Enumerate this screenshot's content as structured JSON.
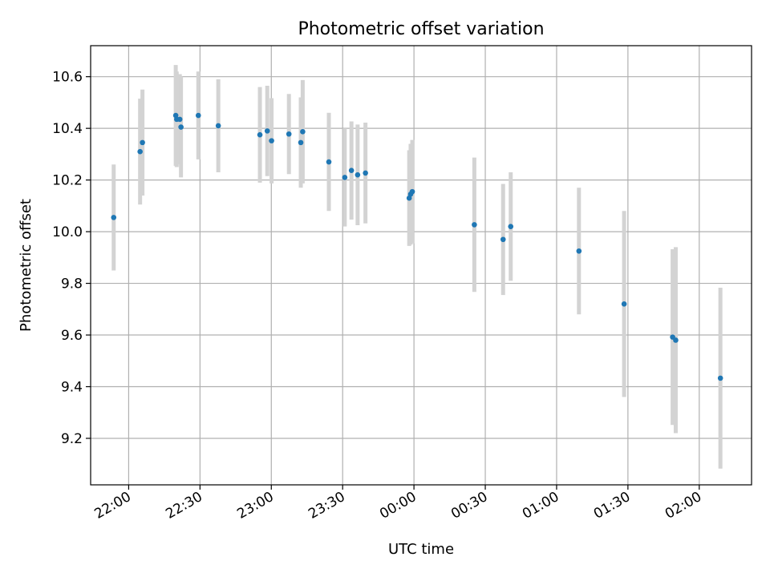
{
  "chart_data": {
    "type": "scatter",
    "title": "Photometric offset variation",
    "xlabel": "UTC time",
    "ylabel": "Photometric offset",
    "x_unit": "minutes",
    "xlim": [
      -76,
      202
    ],
    "ylim": [
      9.02,
      10.72
    ],
    "grid": true,
    "legend": "none",
    "x_ticks": [
      {
        "label": "22:00",
        "value": -60
      },
      {
        "label": "22:30",
        "value": -30
      },
      {
        "label": "23:00",
        "value": 0
      },
      {
        "label": "23:30",
        "value": 30
      },
      {
        "label": "00:00",
        "value": 60
      },
      {
        "label": "00:30",
        "value": 90
      },
      {
        "label": "01:00",
        "value": 120
      },
      {
        "label": "01:30",
        "value": 150
      },
      {
        "label": "02:00",
        "value": 180
      }
    ],
    "y_ticks": [
      {
        "label": "9.2",
        "value": 9.2
      },
      {
        "label": "9.4",
        "value": 9.4
      },
      {
        "label": "9.6",
        "value": 9.6
      },
      {
        "label": "9.8",
        "value": 9.8
      },
      {
        "label": "10.0",
        "value": 10.0
      },
      {
        "label": "10.2",
        "value": 10.2
      },
      {
        "label": "10.4",
        "value": 10.4
      },
      {
        "label": "10.6",
        "value": 10.6
      }
    ],
    "colors": {
      "point": "#1f77b4",
      "errorbar": "#d3d3d3",
      "grid": "#b0b0b0"
    },
    "points": [
      {
        "x": -66.3,
        "y": 10.055,
        "err": 0.205
      },
      {
        "x": -55.2,
        "y": 10.31,
        "err": 0.205
      },
      {
        "x": -54.2,
        "y": 10.345,
        "err": 0.205
      },
      {
        "x": -40.2,
        "y": 10.45,
        "err": 0.195
      },
      {
        "x": -39.8,
        "y": 10.435,
        "err": 0.185
      },
      {
        "x": -38.5,
        "y": 10.435,
        "err": 0.175
      },
      {
        "x": -38.0,
        "y": 10.405,
        "err": 0.195
      },
      {
        "x": -30.7,
        "y": 10.45,
        "err": 0.17
      },
      {
        "x": -22.3,
        "y": 10.41,
        "err": 0.18
      },
      {
        "x": -4.8,
        "y": 10.375,
        "err": 0.185
      },
      {
        "x": -1.7,
        "y": 10.39,
        "err": 0.175
      },
      {
        "x": 0.1,
        "y": 10.352,
        "err": 0.165
      },
      {
        "x": 7.4,
        "y": 10.378,
        "err": 0.155
      },
      {
        "x": 12.4,
        "y": 10.345,
        "err": 0.175
      },
      {
        "x": 13.2,
        "y": 10.387,
        "err": 0.2
      },
      {
        "x": 24.2,
        "y": 10.27,
        "err": 0.19
      },
      {
        "x": 30.9,
        "y": 10.21,
        "err": 0.19
      },
      {
        "x": 33.7,
        "y": 10.237,
        "err": 0.19
      },
      {
        "x": 36.3,
        "y": 10.22,
        "err": 0.195
      },
      {
        "x": 39.6,
        "y": 10.227,
        "err": 0.195
      },
      {
        "x": 58.0,
        "y": 10.13,
        "err": 0.185
      },
      {
        "x": 58.6,
        "y": 10.145,
        "err": 0.195
      },
      {
        "x": 59.3,
        "y": 10.155,
        "err": 0.2
      },
      {
        "x": 85.4,
        "y": 10.027,
        "err": 0.26
      },
      {
        "x": 97.5,
        "y": 9.97,
        "err": 0.215
      },
      {
        "x": 100.7,
        "y": 10.02,
        "err": 0.21
      },
      {
        "x": 129.4,
        "y": 9.925,
        "err": 0.245
      },
      {
        "x": 148.4,
        "y": 9.72,
        "err": 0.36
      },
      {
        "x": 168.8,
        "y": 9.592,
        "err": 0.34
      },
      {
        "x": 170.1,
        "y": 9.58,
        "err": 0.36
      },
      {
        "x": 188.9,
        "y": 9.433,
        "err": 0.35
      }
    ]
  }
}
